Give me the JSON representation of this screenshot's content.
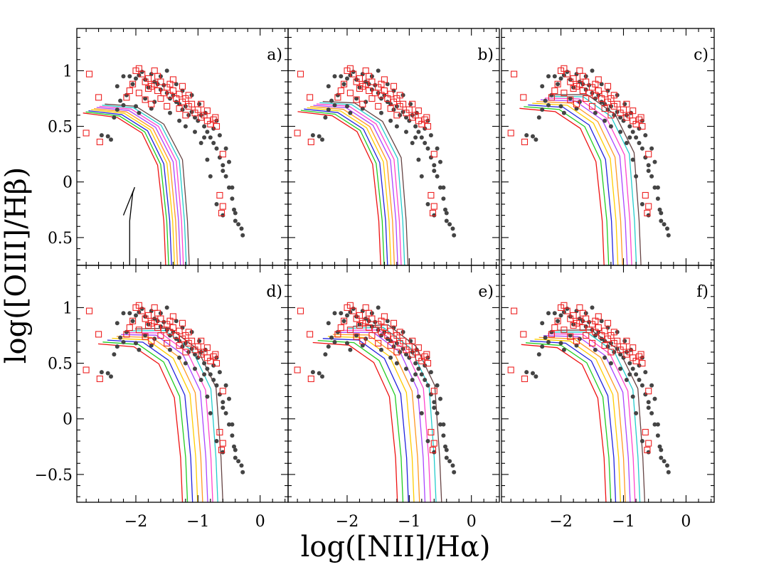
{
  "chart_data": {
    "type": "scatter",
    "layout": "2x3 panel grid, shared axes",
    "xlabel": "log([NII]/Hα)",
    "ylabel": "log([OIII]/Hβ)",
    "xlim": [
      -2.95,
      0.45
    ],
    "ylim": [
      -0.75,
      1.38
    ],
    "xticks": [
      -2,
      -1,
      0
    ],
    "xtick_labels": [
      "−2",
      "−1",
      "0"
    ],
    "yticks": [
      -0.5,
      0,
      0.5,
      1
    ],
    "ytick_labels": [
      "−0.5",
      "0",
      "0.5",
      "1"
    ],
    "grid": false,
    "legend": "none",
    "panels": [
      {
        "label": "a)",
        "model_shift": 0.0
      },
      {
        "label": "b)",
        "model_shift": 0.1
      },
      {
        "label": "c)",
        "model_shift": 0.35
      },
      {
        "label": "d)",
        "model_shift": 0.45
      },
      {
        "label": "e)",
        "model_shift": 0.55
      },
      {
        "label": "f)",
        "model_shift": 0.4
      }
    ],
    "model_colors": [
      "#ee1111",
      "#22cc22",
      "#2222dd",
      "#ffcc00",
      "#ff9922",
      "#aa44ff",
      "#ff44cc",
      "#22cccc",
      "#664444"
    ],
    "extra_line_panel_a": {
      "color": "#000000",
      "x": [
        -2.1,
        -2.1,
        -2.05,
        -2.02,
        -2.2
      ],
      "y": [
        -0.75,
        -0.35,
        -0.1,
        -0.05,
        -0.3
      ]
    },
    "series": [
      {
        "name": "",
        "marker": "filled-circle",
        "color": "#444444",
        "points": [
          [
            -2.55,
            0.42
          ],
          [
            -2.45,
            0.41
          ],
          [
            -2.4,
            0.38
          ],
          [
            -2.35,
            0.58
          ],
          [
            -2.3,
            0.65
          ],
          [
            -2.25,
            0.73
          ],
          [
            -2.2,
            0.69
          ],
          [
            -2.15,
            0.78
          ],
          [
            -2.1,
            0.95
          ],
          [
            -2.05,
            0.88
          ],
          [
            -2.0,
            0.93
          ],
          [
            -1.95,
            0.96
          ],
          [
            -1.9,
            0.99
          ],
          [
            -1.85,
            0.92
          ],
          [
            -1.8,
            0.85
          ],
          [
            -1.75,
            0.97
          ],
          [
            -1.7,
            0.9
          ],
          [
            -1.65,
            0.88
          ],
          [
            -1.6,
            0.83
          ],
          [
            -1.55,
            0.87
          ],
          [
            -1.5,
            0.8
          ],
          [
            -1.45,
            0.75
          ],
          [
            -1.4,
            0.78
          ],
          [
            -1.35,
            0.72
          ],
          [
            -1.3,
            0.7
          ],
          [
            -1.25,
            0.65
          ],
          [
            -1.2,
            0.68
          ],
          [
            -1.15,
            0.6
          ],
          [
            -1.1,
            0.63
          ],
          [
            -1.05,
            0.58
          ],
          [
            -1.0,
            0.55
          ],
          [
            -0.95,
            0.6
          ],
          [
            -0.9,
            0.5
          ],
          [
            -0.85,
            0.45
          ],
          [
            -0.8,
            0.4
          ],
          [
            -0.75,
            0.35
          ],
          [
            -0.7,
            0.3
          ],
          [
            -0.65,
            0.22
          ],
          [
            -0.6,
            0.15
          ],
          [
            -0.55,
            0.05
          ],
          [
            -0.5,
            -0.05
          ],
          [
            -0.45,
            -0.15
          ],
          [
            -0.42,
            -0.25
          ],
          [
            -0.4,
            -0.35
          ],
          [
            -0.35,
            -0.38
          ],
          [
            -0.3,
            -0.42
          ],
          [
            -0.28,
            -0.48
          ],
          [
            -0.6,
            -0.3
          ],
          [
            -0.7,
            -0.2
          ],
          [
            -0.8,
            0.05
          ],
          [
            -0.65,
            0.42
          ],
          [
            -0.55,
            0.3
          ],
          [
            -1.7,
            0.72
          ],
          [
            -1.95,
            0.62
          ],
          [
            -2.0,
            0.68
          ],
          [
            -1.85,
            0.75
          ],
          [
            -1.45,
            0.62
          ],
          [
            -1.3,
            0.55
          ],
          [
            -1.2,
            0.5
          ],
          [
            -0.95,
            0.35
          ],
          [
            -0.85,
            0.2
          ],
          [
            -0.6,
            0.1
          ],
          [
            -1.6,
            0.95
          ],
          [
            -1.5,
            1.0
          ],
          [
            -1.35,
            0.88
          ],
          [
            -1.25,
            0.82
          ],
          [
            -1.1,
            0.78
          ],
          [
            -0.98,
            0.7
          ],
          [
            -0.88,
            0.62
          ],
          [
            -2.3,
            0.86
          ],
          [
            -2.2,
            0.95
          ],
          [
            -1.75,
            0.66
          ],
          [
            -0.75,
            0.48
          ],
          [
            -0.5,
            0.18
          ],
          [
            -0.45,
            -0.05
          ],
          [
            -0.4,
            -0.28
          ],
          [
            -0.7,
            0.55
          ],
          [
            -1.05,
            0.45
          ],
          [
            -0.9,
            0.4
          ]
        ]
      },
      {
        "name": "",
        "marker": "open-square",
        "color": "#ee2222",
        "points": [
          [
            -2.8,
            0.44
          ],
          [
            -2.75,
            0.97
          ],
          [
            -2.6,
            0.76
          ],
          [
            -2.58,
            0.36
          ],
          [
            -2.0,
            1.0
          ],
          [
            -1.95,
            1.02
          ],
          [
            -1.9,
            0.97
          ],
          [
            -1.85,
            0.9
          ],
          [
            -1.8,
            0.93
          ],
          [
            -1.75,
            0.86
          ],
          [
            -1.7,
            0.88
          ],
          [
            -1.65,
            0.82
          ],
          [
            -1.6,
            0.9
          ],
          [
            -1.55,
            0.8
          ],
          [
            -1.5,
            0.85
          ],
          [
            -1.45,
            0.78
          ],
          [
            -1.4,
            0.82
          ],
          [
            -1.35,
            0.75
          ],
          [
            -1.3,
            0.79
          ],
          [
            -1.25,
            0.72
          ],
          [
            -1.2,
            0.75
          ],
          [
            -1.15,
            0.68
          ],
          [
            -1.1,
            0.7
          ],
          [
            -1.05,
            0.62
          ],
          [
            -1.0,
            0.65
          ],
          [
            -0.95,
            0.58
          ],
          [
            -0.9,
            0.6
          ],
          [
            -0.85,
            0.55
          ],
          [
            -0.8,
            0.52
          ],
          [
            -0.75,
            0.56
          ],
          [
            -0.7,
            0.5
          ],
          [
            -1.85,
            0.74
          ],
          [
            -1.75,
            0.7
          ],
          [
            -1.65,
            0.95
          ],
          [
            -1.4,
            0.92
          ],
          [
            -1.3,
            0.66
          ],
          [
            -1.2,
            0.6
          ],
          [
            -2.1,
            0.82
          ],
          [
            -2.05,
            0.88
          ],
          [
            -1.95,
            0.8
          ],
          [
            -0.6,
            0.25
          ],
          [
            -0.65,
            -0.12
          ],
          [
            -0.6,
            -0.22
          ],
          [
            -0.62,
            -0.28
          ],
          [
            -1.5,
            0.68
          ],
          [
            -1.6,
            0.75
          ],
          [
            -1.45,
            0.88
          ],
          [
            -1.15,
            0.78
          ],
          [
            -0.95,
            0.7
          ],
          [
            -0.85,
            0.64
          ],
          [
            -0.72,
            0.58
          ],
          [
            -1.7,
            1.0
          ],
          [
            -2.15,
            0.76
          ],
          [
            -1.8,
            0.84
          ],
          [
            -1.25,
            0.86
          ]
        ]
      }
    ]
  }
}
